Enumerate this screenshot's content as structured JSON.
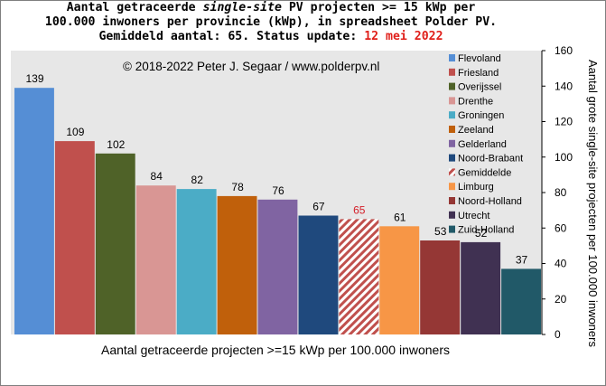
{
  "title": {
    "line1_a": "Aantal getraceerde ",
    "line1_italic": "single-site",
    "line1_b": " PV projecten >= 15 kWp per",
    "line2": "100.000 inwoners per provincie (kWp), in spreadsheet Polder PV.",
    "line3_a": "Gemiddeld aantal: 65. Status update: ",
    "line3_date": "12 mei 2022"
  },
  "copyright": "© 2018-2022 Peter J. Segaar / www.polderpv.nl",
  "colors": {
    "plot_background": "#e7e7e7",
    "highlight_text": "#e0201b",
    "average_label": "#d4202a"
  },
  "chart_data": {
    "type": "bar",
    "xlabel": "Aantal getraceerde projecten >=15 kWp per 100.000 inwoners",
    "ylabel": "Aantal grote single-site projecten per 100.000 inwoners",
    "ylim": [
      0,
      160
    ],
    "yticks": [
      "0",
      "20",
      "40",
      "60",
      "80",
      "100",
      "120",
      "140",
      "160"
    ],
    "y_axis_side": "right",
    "grid": false,
    "legend_position": "top-right",
    "categories": [
      "Flevoland",
      "Friesland",
      "Overijssel",
      "Drenthe",
      "Groningen",
      "Zeeland",
      "Gelderland",
      "Noord-Brabant",
      "Gemiddelde",
      "Limburg",
      "Noord-Holland",
      "Utrecht",
      "Zuid-Holland"
    ],
    "values": [
      139,
      109,
      102,
      84,
      82,
      78,
      76,
      67,
      65,
      61,
      53,
      52,
      37
    ],
    "value_labels": [
      "139",
      "109",
      "102",
      "84",
      "82",
      "78",
      "76",
      "67",
      "65",
      "61",
      "53",
      "52",
      "37"
    ],
    "bar_colors": [
      "#558ed5",
      "#c0504d",
      "#4f6228",
      "#d99694",
      "#4bacc6",
      "#c0600b",
      "#8064a2",
      "#1f497d",
      "#c0504d",
      "#f79646",
      "#953735",
      "#403152",
      "#215968"
    ],
    "hatched": [
      false,
      false,
      false,
      false,
      false,
      false,
      false,
      false,
      true,
      false,
      false,
      false,
      false
    ]
  }
}
